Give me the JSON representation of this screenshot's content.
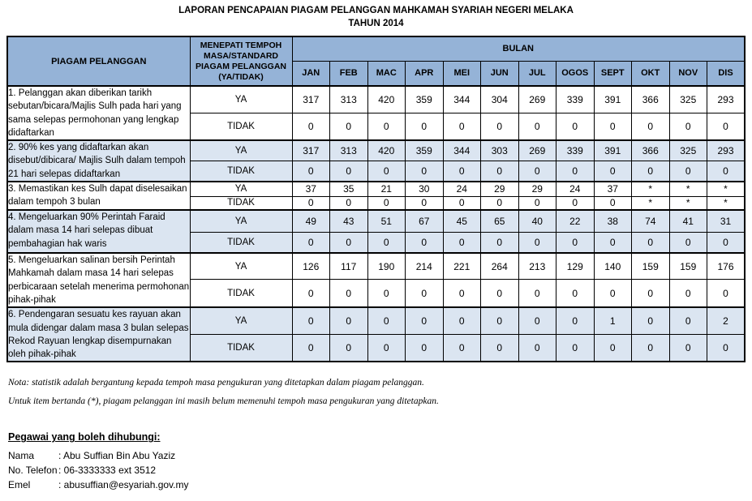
{
  "title": {
    "line1": "LAPORAN PENCAPAIAN PIAGAM PELANGGAN MAHKAMAH SYARIAH NEGERI MELAKA",
    "line2": "TAHUN 2014"
  },
  "colors": {
    "header_blue": "#95B3D7",
    "shaded_row_blue": "#DBE5F1",
    "border": "#000000"
  },
  "table": {
    "col1_header": "PIAGAM PELANGGAN",
    "col2_header": "MENEPATI TEMPOH MASA/STANDARD PIAGAM PELANGGAN (YA/TIDAK)",
    "bulan_header": "BULAN",
    "ya_label": "YA",
    "tidak_label": "TIDAK",
    "months": [
      "JAN",
      "FEB",
      "MAC",
      "APR",
      "MEI",
      "JUN",
      "JUL",
      "OGOS",
      "SEPT",
      "OKT",
      "NOV",
      "DIS"
    ],
    "items": [
      {
        "label": "1. Pelanggan akan diberikan tarikh sebutan/bicara/Majlis Sulh pada hari yang sama selepas permohonan yang lengkap didaftarkan",
        "shaded": false,
        "ya": [
          "317",
          "313",
          "420",
          "359",
          "344",
          "304",
          "269",
          "339",
          "391",
          "366",
          "325",
          "293"
        ],
        "tidak": [
          "0",
          "0",
          "0",
          "0",
          "0",
          "0",
          "0",
          "0",
          "0",
          "0",
          "0",
          "0"
        ]
      },
      {
        "label": "2. 90% kes yang didaftarkan akan disebut/dibicara/ Majlis Sulh dalam tempoh 21 hari selepas didaftarkan",
        "shaded": true,
        "ya": [
          "317",
          "313",
          "420",
          "359",
          "344",
          "303",
          "269",
          "339",
          "391",
          "366",
          "325",
          "293"
        ],
        "tidak": [
          "0",
          "0",
          "0",
          "0",
          "0",
          "0",
          "0",
          "0",
          "0",
          "0",
          "0",
          "0"
        ]
      },
      {
        "label": "3. Memastikan kes Sulh dapat diselesaikan dalam tempoh 3 bulan",
        "shaded": false,
        "ya": [
          "37",
          "35",
          "21",
          "30",
          "24",
          "29",
          "29",
          "24",
          "37",
          "*",
          "*",
          "*"
        ],
        "tidak": [
          "0",
          "0",
          "0",
          "0",
          "0",
          "0",
          "0",
          "0",
          "0",
          "*",
          "*",
          "*"
        ]
      },
      {
        "label": "4. Mengeluarkan 90% Perintah Faraid dalam masa 14 hari selepas dibuat pembahagian hak waris",
        "shaded": true,
        "ya": [
          "49",
          "43",
          "51",
          "67",
          "45",
          "65",
          "40",
          "22",
          "38",
          "74",
          "41",
          "31"
        ],
        "tidak": [
          "0",
          "0",
          "0",
          "0",
          "0",
          "0",
          "0",
          "0",
          "0",
          "0",
          "0",
          "0"
        ]
      },
      {
        "label": "5. Mengeluarkan salinan bersih Perintah Mahkamah dalam masa 14 hari selepas perbicaraan setelah menerima permohonan pihak-pihak",
        "shaded": false,
        "ya": [
          "126",
          "117",
          "190",
          "214",
          "221",
          "264",
          "213",
          "129",
          "140",
          "159",
          "159",
          "176"
        ],
        "tidak": [
          "0",
          "0",
          "0",
          "0",
          "0",
          "0",
          "0",
          "0",
          "0",
          "0",
          "0",
          "0"
        ]
      },
      {
        "label": "6. Pendengaran sesuatu kes rayuan akan mula didengar dalam masa 3 bulan selepas Rekod Rayuan lengkap  disempurnakan oleh pihak-pihak",
        "shaded": true,
        "ya": [
          "0",
          "0",
          "0",
          "0",
          "0",
          "0",
          "0",
          "0",
          "1",
          "0",
          "0",
          "2"
        ],
        "tidak": [
          "0",
          "0",
          "0",
          "0",
          "0",
          "0",
          "0",
          "0",
          "0",
          "0",
          "0",
          "0"
        ]
      }
    ]
  },
  "notes": [
    "Nota: statistik adalah bergantung kepada tempoh masa pengukuran yang ditetapkan dalam piagam pelanggan.",
    "Untuk item bertanda (*), piagam pelanggan ini masih belum memenuhi tempoh masa pengukuran yang ditetapkan."
  ],
  "contact": {
    "heading": "Pegawai yang boleh dihubungi:",
    "rows": [
      {
        "label": "Nama",
        "value": ": Abu Suffian Bin Abu Yaziz"
      },
      {
        "label": "No. Telefon",
        "value": ": 06-3333333 ext 3512"
      },
      {
        "label": "Emel",
        "value": ": abusuffian@esyariah.gov.my"
      }
    ]
  }
}
